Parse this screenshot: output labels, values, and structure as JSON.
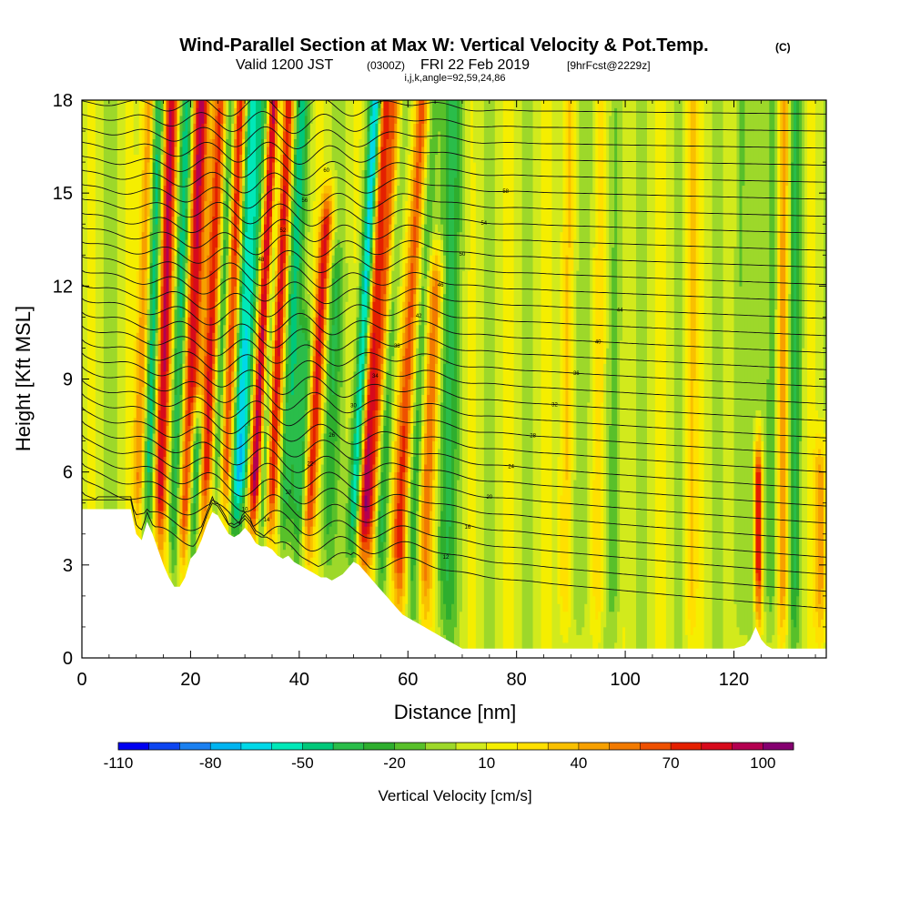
{
  "title": {
    "main": "Wind-Parallel Section at Max W: Vertical Velocity & Pot.Temp.",
    "copyright": "(C)",
    "valid_prefix": "Valid 1200 JST",
    "valid_utc": "(0300Z)",
    "valid_date": "FRI 22 Feb 2019",
    "forecast": "[9hrFcst@2229z]",
    "params": "i,j,k,angle=92,59,24,86"
  },
  "chart_data": {
    "type": "heatmap",
    "xlabel": "Distance [nm]",
    "ylabel": "Height [Kft MSL]",
    "xlim": [
      0,
      137
    ],
    "ylim": [
      0,
      18
    ],
    "x_ticks": [
      0,
      20,
      40,
      60,
      80,
      100,
      120
    ],
    "y_ticks": [
      0,
      3,
      6,
      9,
      12,
      15,
      18
    ],
    "grid": false,
    "colorbar": {
      "title": "Vertical Velocity [cm/s]",
      "tick_labels": [
        "-110",
        "-80",
        "-50",
        "-20",
        "10",
        "40",
        "70",
        "100"
      ],
      "levels": [
        -110,
        -100,
        -90,
        -80,
        -70,
        -60,
        -50,
        -40,
        -30,
        -20,
        -10,
        0,
        10,
        20,
        30,
        40,
        50,
        60,
        70,
        80,
        90,
        100,
        110
      ],
      "colors": [
        "#0000f0",
        "#0d45f0",
        "#1a80f0",
        "#00b4f0",
        "#00d8e8",
        "#00e8b8",
        "#00c87a",
        "#2abd4a",
        "#2eae2e",
        "#58c02a",
        "#9dd82a",
        "#d2ea1c",
        "#f5ee00",
        "#ffe000",
        "#f9c000",
        "#f7a000",
        "#f27a00",
        "#ee5000",
        "#e42000",
        "#d70a1c",
        "#b40050",
        "#850070"
      ]
    },
    "terrain_kft": {
      "x": [
        0,
        9,
        10,
        11,
        12,
        13,
        14,
        15,
        16,
        17,
        18,
        19,
        20,
        21,
        22,
        23,
        24,
        25,
        26,
        27,
        28,
        29,
        30,
        31,
        32,
        33,
        34,
        35,
        36,
        37,
        38,
        39,
        40,
        41,
        42,
        43,
        44,
        45,
        46,
        47,
        48,
        49,
        50,
        51,
        52,
        53,
        54,
        55,
        56,
        57,
        58,
        59,
        60,
        61,
        62,
        63,
        64,
        65,
        66,
        67,
        68,
        69,
        70,
        71,
        72,
        73,
        75,
        80,
        85,
        90,
        95,
        100,
        105,
        110,
        115,
        120,
        122,
        123,
        124,
        125,
        126,
        127,
        128,
        130,
        137
      ],
      "z": [
        4.8,
        4.8,
        4.0,
        3.8,
        4.4,
        4.0,
        3.5,
        3.0,
        2.6,
        2.3,
        2.3,
        2.6,
        3.2,
        3.4,
        3.8,
        4.3,
        4.7,
        4.6,
        4.3,
        4.0,
        3.9,
        4.0,
        4.2,
        4.0,
        3.7,
        3.6,
        3.6,
        3.5,
        3.3,
        3.2,
        3.3,
        3.1,
        3.0,
        2.9,
        2.8,
        2.7,
        2.6,
        2.6,
        2.5,
        2.6,
        2.7,
        2.9,
        3.1,
        3.0,
        2.8,
        2.6,
        2.4,
        2.2,
        2.0,
        1.8,
        1.6,
        1.4,
        1.3,
        1.2,
        1.1,
        1.0,
        0.9,
        0.8,
        0.7,
        0.6,
        0.5,
        0.4,
        0.3,
        0.3,
        0.3,
        0.3,
        0.3,
        0.3,
        0.3,
        0.3,
        0.3,
        0.3,
        0.3,
        0.3,
        0.3,
        0.3,
        0.4,
        0.6,
        1.0,
        0.6,
        0.4,
        0.3,
        0.3,
        0.3,
        0.3
      ]
    },
    "updraft_bands": [
      {
        "x": 10.5,
        "slope": 0.15,
        "w": 60,
        "width": 1.3,
        "z_top": 18
      },
      {
        "x": 14,
        "slope": 0.18,
        "w": 85,
        "width": 1.4,
        "z_top": 18
      },
      {
        "x": 19,
        "slope": 0.2,
        "w": 90,
        "width": 1.6,
        "z_top": 18
      },
      {
        "x": 22.5,
        "slope": 0.22,
        "w": 75,
        "width": 1.3,
        "z_top": 18
      },
      {
        "x": 26,
        "slope": 0.22,
        "w": 80,
        "width": 1.3,
        "z_top": 18
      },
      {
        "x": 30,
        "slope": 0.25,
        "w": 70,
        "width": 1.2,
        "z_top": 18
      },
      {
        "x": 31.5,
        "slope": 0.28,
        "w": 105,
        "width": 1.1,
        "z_top": 18
      },
      {
        "x": 34.5,
        "slope": 0.25,
        "w": 80,
        "width": 1.3,
        "z_top": 18
      },
      {
        "x": 41.5,
        "slope": 0.35,
        "w": 75,
        "width": 1.2,
        "z_top": 14
      },
      {
        "x": 51.5,
        "slope": 0.3,
        "w": 80,
        "width": 1.1,
        "z_top": 18
      },
      {
        "x": 53,
        "slope": 0.35,
        "w": 70,
        "width": 1.3,
        "z_top": 18
      },
      {
        "x": 58.5,
        "slope": 0.3,
        "w": 70,
        "width": 1.5,
        "z_top": 18
      },
      {
        "x": 63,
        "slope": 0.25,
        "w": 55,
        "width": 1.5,
        "z_top": 12
      },
      {
        "x": 89,
        "slope": 0.05,
        "w": 35,
        "width": 1.2,
        "z_top": 18
      },
      {
        "x": 95,
        "slope": 0.05,
        "w": 30,
        "width": 1.2,
        "z_top": 18
      },
      {
        "x": 112,
        "slope": 0.03,
        "w": 25,
        "width": 1.2,
        "z_top": 18
      },
      {
        "x": 124.5,
        "slope": 0.0,
        "w": 85,
        "width": 0.7,
        "z_top": 6
      },
      {
        "x": 129,
        "slope": 0.02,
        "w": 45,
        "width": 1.2,
        "z_top": 18
      },
      {
        "x": 136,
        "slope": 0.0,
        "w": 40,
        "width": 1.2,
        "z_top": 6
      }
    ],
    "downdraft_bands": [
      {
        "x": 12,
        "slope": 0.15,
        "w": -65,
        "width": 1.3,
        "z_top": 18
      },
      {
        "x": 17,
        "slope": 0.18,
        "w": -55,
        "width": 1.3,
        "z_top": 18
      },
      {
        "x": 20.5,
        "slope": 0.2,
        "w": -80,
        "width": 1.2,
        "z_top": 7
      },
      {
        "x": 24.5,
        "slope": 0.22,
        "w": -45,
        "width": 1.2,
        "z_top": 18
      },
      {
        "x": 28,
        "slope": 0.22,
        "w": -60,
        "width": 1.2,
        "z_top": 18
      },
      {
        "x": 29.5,
        "slope": 0.28,
        "w": -105,
        "width": 1.3,
        "z_top": 18
      },
      {
        "x": 33,
        "slope": 0.25,
        "w": -50,
        "width": 1.1,
        "z_top": 18
      },
      {
        "x": 37,
        "slope": 0.25,
        "w": -45,
        "width": 1.4,
        "z_top": 18
      },
      {
        "x": 40,
        "slope": 0.2,
        "w": -35,
        "width": 1.5,
        "z_top": 10
      },
      {
        "x": 45,
        "slope": 0.2,
        "w": -30,
        "width": 1.5,
        "z_top": 12
      },
      {
        "x": 50,
        "slope": 0.3,
        "w": -75,
        "width": 1.2,
        "z_top": 18
      },
      {
        "x": 55,
        "slope": 0.25,
        "w": -40,
        "width": 1.3,
        "z_top": 18
      },
      {
        "x": 61,
        "slope": 0.25,
        "w": -35,
        "width": 1.5,
        "z_top": 18
      },
      {
        "x": 67,
        "slope": 0.1,
        "w": -30,
        "width": 2.0,
        "z_top": 18
      },
      {
        "x": 92,
        "slope": 0.05,
        "w": -20,
        "width": 1.5,
        "z_top": 18
      },
      {
        "x": 98,
        "slope": 0.05,
        "w": -20,
        "width": 1.3,
        "z_top": 18
      },
      {
        "x": 121,
        "slope": 0.02,
        "w": -20,
        "width": 1.3,
        "z_top": 18
      },
      {
        "x": 127,
        "slope": 0.02,
        "w": -30,
        "width": 1.2,
        "z_top": 18
      },
      {
        "x": 131,
        "slope": 0.02,
        "w": -30,
        "width": 1.2,
        "z_top": 18
      }
    ],
    "isentropes": {
      "count": 30,
      "z_left_start": 4.9,
      "z_right_start": 1.6,
      "spacing_left": 0.45,
      "spacing_right": 0.55,
      "labels": [
        "10",
        "12",
        "14",
        "16",
        "18",
        "20",
        "22",
        "24",
        "26",
        "28",
        "30",
        "32",
        "34",
        "36",
        "38",
        "40",
        "42",
        "44",
        "46",
        "48",
        "50",
        "52",
        "54",
        "56",
        "58",
        "60"
      ]
    }
  }
}
